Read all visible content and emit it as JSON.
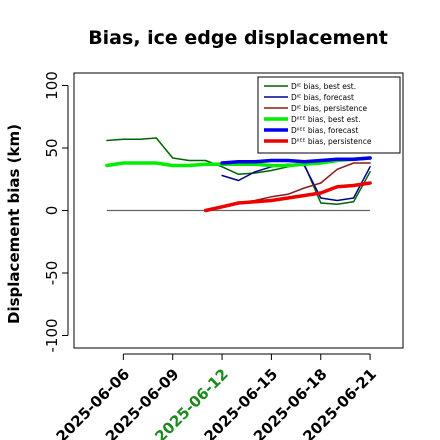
{
  "chart_data": {
    "type": "line",
    "title": "Bias, ice edge displacement",
    "xlabel": "",
    "ylabel": "Displacement bias (km)",
    "ylim": [
      -110,
      110
    ],
    "yticks": [
      -100,
      -50,
      0,
      50,
      100
    ],
    "xlim": [
      "2025-06-03",
      "2025-06-23"
    ],
    "xticks": [
      "2025-06-06",
      "2025-06-09",
      "2025-06-12",
      "2025-06-15",
      "2025-06-18",
      "2025-06-21"
    ],
    "xtick_colors": [
      "#000000",
      "#000000",
      "#1a8a1a",
      "#000000",
      "#000000",
      "#000000"
    ],
    "zero_line": true,
    "legend_position": "top-right",
    "series": [
      {
        "name": "Dᴵᴱ bias, best est.",
        "color": "#006400",
        "width": 1.5,
        "x": [
          "2025-06-05",
          "2025-06-06",
          "2025-06-07",
          "2025-06-08",
          "2025-06-09",
          "2025-06-10",
          "2025-06-11",
          "2025-06-12",
          "2025-06-13",
          "2025-06-14",
          "2025-06-15",
          "2025-06-16",
          "2025-06-17",
          "2025-06-18",
          "2025-06-19",
          "2025-06-20",
          "2025-06-21"
        ],
        "y": [
          56,
          57,
          57,
          58,
          42,
          40,
          40,
          35,
          29,
          30,
          32,
          35,
          37,
          6,
          5,
          7,
          31
        ]
      },
      {
        "name": "Dᴵᴱ bias, forecast",
        "color": "#00008b",
        "width": 1.5,
        "x": [
          "2025-06-12",
          "2025-06-13",
          "2025-06-14",
          "2025-06-15",
          "2025-06-16",
          "2025-06-17",
          "2025-06-18",
          "2025-06-19",
          "2025-06-20",
          "2025-06-21"
        ],
        "y": [
          28,
          24,
          31,
          35,
          37,
          36,
          10,
          8,
          10,
          35
        ]
      },
      {
        "name": "Dᴵᴱ bias, persistence",
        "color": "#8b1a1a",
        "width": 1.5,
        "x": [
          "2025-06-11",
          "2025-06-12",
          "2025-06-13",
          "2025-06-14",
          "2025-06-15",
          "2025-06-16",
          "2025-06-17",
          "2025-06-18",
          "2025-06-19",
          "2025-06-20",
          "2025-06-21"
        ],
        "y": [
          0,
          3,
          6,
          8,
          11,
          13,
          18,
          22,
          33,
          38,
          38
        ]
      },
      {
        "name": "Dᴵᴵᴱᴱ bias, best est.",
        "color": "#00ee00",
        "width": 3.5,
        "x": [
          "2025-06-05",
          "2025-06-06",
          "2025-06-07",
          "2025-06-08",
          "2025-06-09",
          "2025-06-10",
          "2025-06-11",
          "2025-06-12",
          "2025-06-13",
          "2025-06-14",
          "2025-06-15",
          "2025-06-16",
          "2025-06-17",
          "2025-06-18",
          "2025-06-19",
          "2025-06-20",
          "2025-06-21"
        ],
        "y": [
          36,
          38,
          38,
          38,
          36,
          36,
          37,
          37,
          37,
          37,
          36,
          36,
          37,
          38,
          40,
          41,
          42
        ]
      },
      {
        "name": "Dᴵᴵᴱᴱ bias, forecast",
        "color": "#0000ee",
        "width": 3.5,
        "x": [
          "2025-06-12",
          "2025-06-13",
          "2025-06-14",
          "2025-06-15",
          "2025-06-16",
          "2025-06-17",
          "2025-06-18",
          "2025-06-19",
          "2025-06-20",
          "2025-06-21"
        ],
        "y": [
          38,
          39,
          39,
          40,
          40,
          39,
          40,
          41,
          41,
          42
        ]
      },
      {
        "name": "Dᴵᴵᴱᴱ bias, persistence",
        "color": "#ee0000",
        "width": 3.5,
        "x": [
          "2025-06-11",
          "2025-06-12",
          "2025-06-13",
          "2025-06-14",
          "2025-06-15",
          "2025-06-16",
          "2025-06-17",
          "2025-06-18",
          "2025-06-19",
          "2025-06-20",
          "2025-06-21"
        ],
        "y": [
          0,
          3,
          6,
          7,
          8,
          10,
          12,
          14,
          19,
          20,
          22
        ]
      }
    ]
  }
}
